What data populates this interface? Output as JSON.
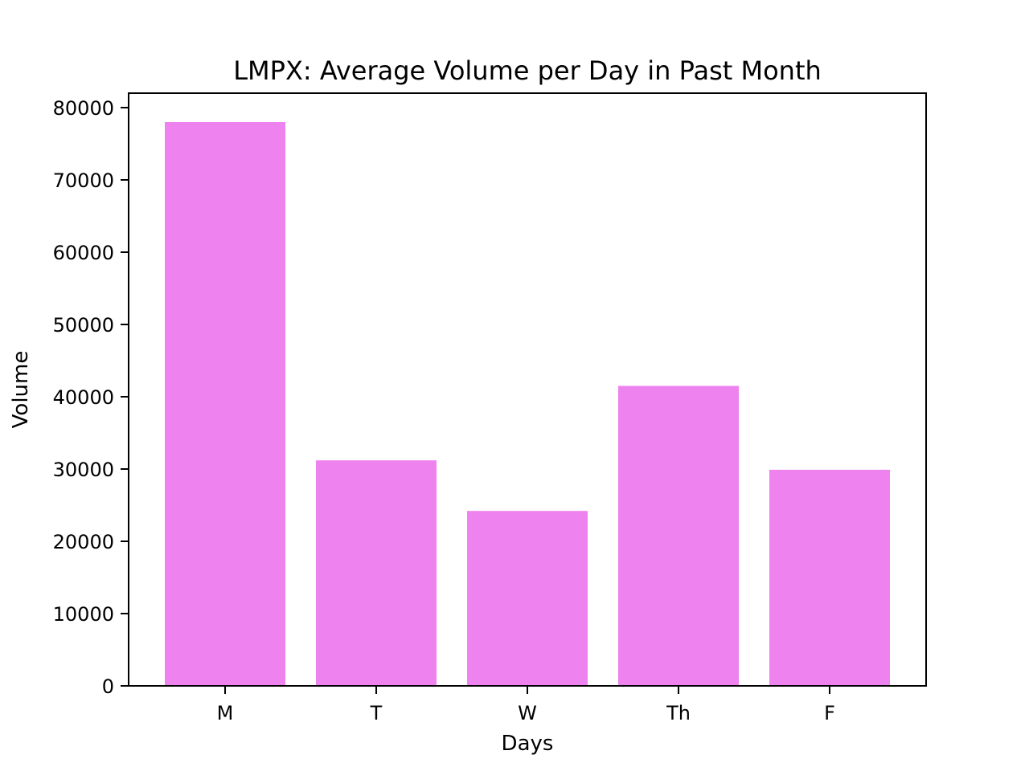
{
  "chart_data": {
    "type": "bar",
    "title": "LMPX: Average Volume per Day in Past Month",
    "xlabel": "Days",
    "ylabel": "Volume",
    "categories": [
      "M",
      "T",
      "W",
      "Th",
      "F"
    ],
    "values": [
      78000,
      31200,
      24200,
      41500,
      29900
    ],
    "ylim": [
      0,
      82000
    ],
    "yticks": [
      0,
      10000,
      20000,
      30000,
      40000,
      50000,
      60000,
      70000,
      80000
    ],
    "ytick_labels": [
      "0",
      "10000",
      "20000",
      "30000",
      "40000",
      "50000",
      "60000",
      "70000",
      "80000"
    ],
    "bar_color": "#ee82ee",
    "grid": false,
    "legend": "none"
  }
}
